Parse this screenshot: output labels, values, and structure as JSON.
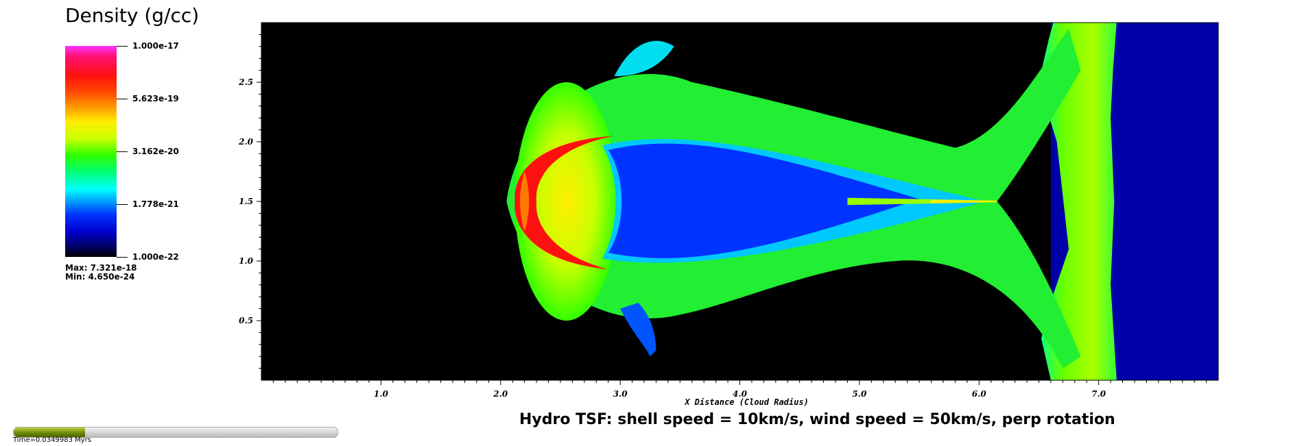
{
  "legend": {
    "title": "Density (g/cc)",
    "ticks": [
      "1.000e-17",
      "5.623e-19",
      "3.162e-20",
      "1.778e-21",
      "1.000e-22"
    ],
    "max_label": "Max:  7.321e-18",
    "min_label": "Min:  4.650e-24"
  },
  "chart_data": {
    "type": "heatmap",
    "title": "Hydro TSF: shell speed = 10km/s, wind speed = 50km/s, perp rotation",
    "xlabel": "X Distance (Cloud Radius)",
    "ylabel": "",
    "xlim": [
      0,
      8.0
    ],
    "ylim": [
      0,
      3.0
    ],
    "x_ticks": [
      "1.0",
      "2.0",
      "3.0",
      "4.0",
      "5.0",
      "6.0",
      "7.0"
    ],
    "y_ticks": [
      "0.5",
      "1.0",
      "1.5",
      "2.0",
      "2.5"
    ],
    "colorscale": "log",
    "color_range": [
      1e-22,
      1e-17
    ],
    "features": {
      "bow_shock_apex_x": 2.05,
      "centerline_y": 1.5,
      "dense_rim_color": "#ff1010",
      "cavity_color": "#0033ff",
      "tail_tip_x": 6.15,
      "shell_band_x": [
        6.6,
        7.15
      ],
      "ambient_wind_color": "#0000a8",
      "background_color": "#000000"
    }
  },
  "time": {
    "label": "Time=0.0349983 Myrs",
    "progress": 0.22
  }
}
